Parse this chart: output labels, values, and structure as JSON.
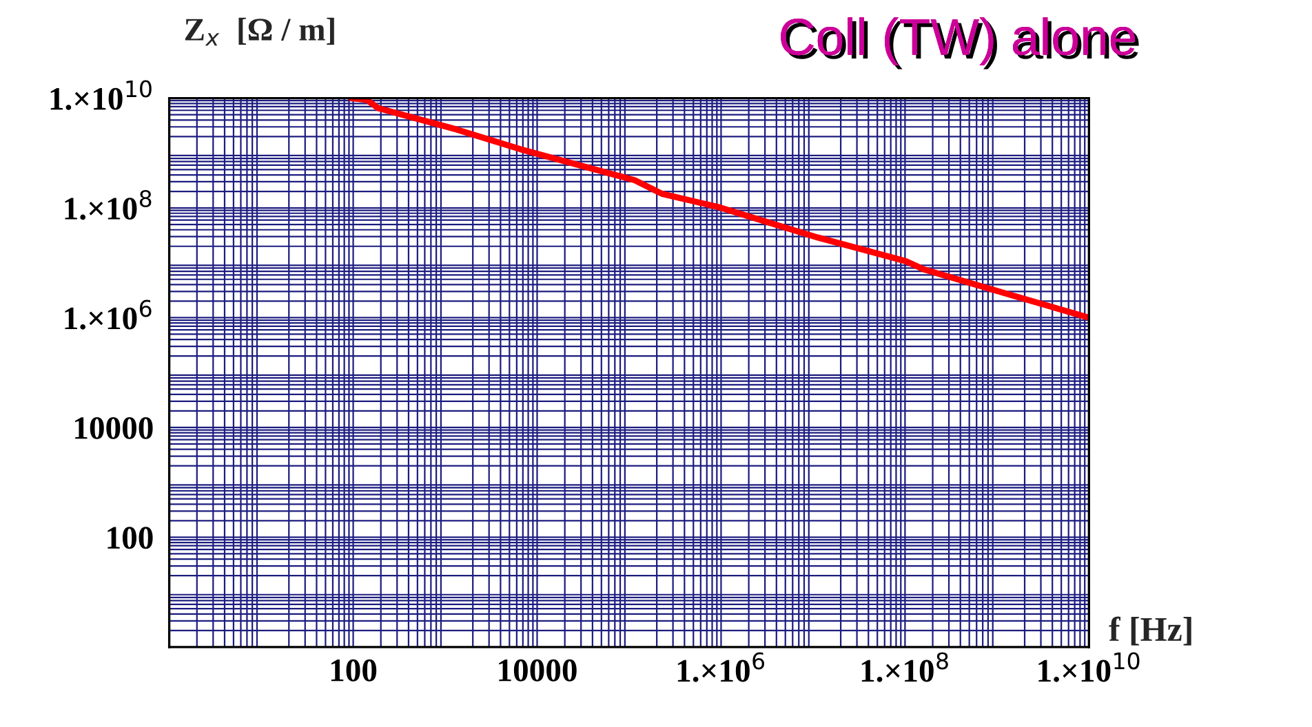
{
  "chart_data": {
    "type": "line",
    "title": "Coll (TW) alone",
    "xlabel": "f [Hz]",
    "ylabel": "Z$_{x}$  [Ω / m]",
    "x": [
      95,
      141,
      186,
      1320,
      6600,
      115000,
      230000,
      910000,
      11200000,
      102000000,
      160000000,
      1260000000,
      10000000000
    ],
    "series": [
      {
        "color": "#ff0000",
        "values": [
          10000000000,
          9300000000,
          6600000000,
          2700000000,
          1170000000,
          320000000,
          180000000,
          105000000,
          29000000,
          10700000,
          7600000,
          2750000,
          1000000
        ]
      }
    ],
    "log": "xy",
    "xlim": [
      1,
      10000000000
    ],
    "ylim": [
      1,
      10000000000
    ],
    "xticks": [
      100,
      10000,
      {
        "value": 1000000,
        "label": "1.×10$^{6}$"
      },
      {
        "value": 100000000,
        "label": "1.×10$^{8}$"
      },
      {
        "value": 10000000000,
        "label": "1.×10$^{10}$"
      }
    ],
    "yticks": [
      100,
      10000,
      {
        "value": 1000000,
        "label": "1.×10$^{6}$"
      },
      {
        "value": 100000000,
        "label": "1.×10$^{8}$"
      },
      {
        "value": 10000000000,
        "label": "1.×10$^{10}$"
      }
    ],
    "grid": true,
    "marker": "none",
    "line_style": "solid"
  }
}
